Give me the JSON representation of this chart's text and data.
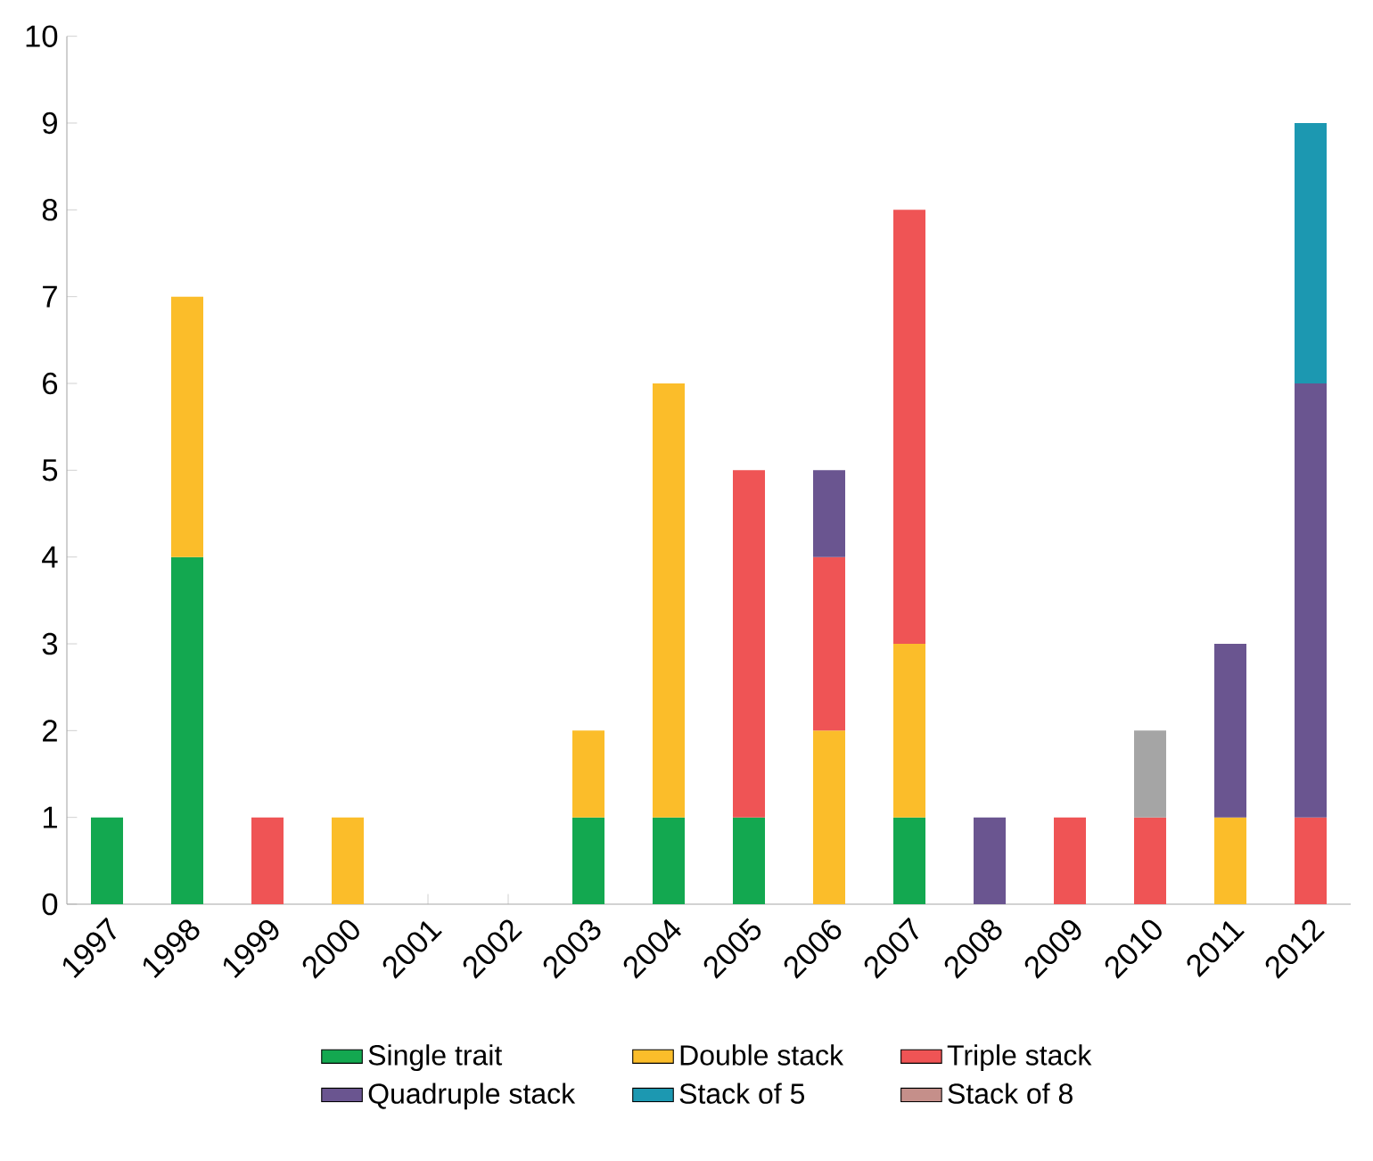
{
  "chart_data": {
    "type": "bar",
    "stacked": true,
    "categories": [
      "1997",
      "1998",
      "1999",
      "2000",
      "2001",
      "2002",
      "2003",
      "2004",
      "2005",
      "2006",
      "2007",
      "2008",
      "2009",
      "2010",
      "2011",
      "2012"
    ],
    "series": [
      {
        "name": "Single trait",
        "color": "#13a850",
        "values": [
          1,
          4,
          null,
          null,
          null,
          null,
          1,
          1,
          1,
          null,
          1,
          null,
          null,
          null,
          null,
          null
        ]
      },
      {
        "name": "Double stack",
        "color": "#fbbd2a",
        "values": [
          null,
          3,
          null,
          1,
          null,
          null,
          1,
          5,
          null,
          2,
          2,
          null,
          null,
          null,
          1,
          null
        ]
      },
      {
        "name": "Triple stack",
        "color": "#ef5455",
        "values": [
          null,
          null,
          1,
          null,
          null,
          null,
          null,
          null,
          4,
          2,
          5,
          null,
          1,
          1,
          null,
          1
        ]
      },
      {
        "name": "Quadruple stack",
        "color": "#6a5590",
        "values": [
          null,
          null,
          null,
          null,
          null,
          null,
          null,
          null,
          null,
          1,
          null,
          1,
          null,
          null,
          2,
          5
        ]
      },
      {
        "name": "Stack of 5",
        "color": "#1c98b1",
        "values": [
          null,
          null,
          null,
          null,
          null,
          null,
          null,
          null,
          null,
          null,
          null,
          null,
          null,
          null,
          null,
          3
        ]
      },
      {
        "name": "Stack of 8",
        "color": "#c58f8a",
        "values": [
          null,
          null,
          null,
          null,
          null,
          null,
          null,
          null,
          null,
          null,
          null,
          null,
          null,
          null,
          null,
          null
        ]
      },
      {
        "color": "#a5a5a5",
        "values": [
          null,
          null,
          null,
          null,
          null,
          null,
          null,
          null,
          null,
          null,
          null,
          null,
          null,
          1,
          null,
          null
        ]
      }
    ],
    "ylim": [
      0,
      10
    ],
    "yticks": [
      0,
      1,
      2,
      3,
      4,
      5,
      6,
      7,
      8,
      9,
      10
    ],
    "grid": false,
    "legend": "bottom"
  }
}
